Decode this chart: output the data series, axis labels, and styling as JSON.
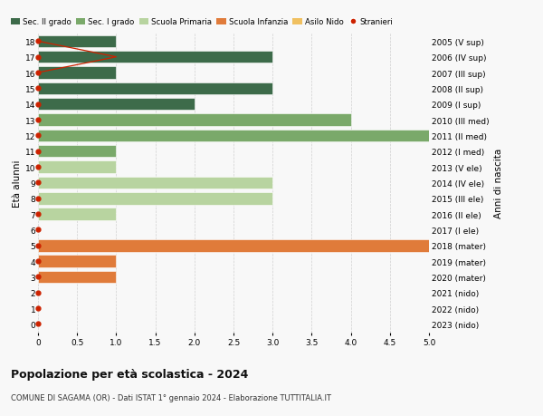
{
  "ages": [
    18,
    17,
    16,
    15,
    14,
    13,
    12,
    11,
    10,
    9,
    8,
    7,
    6,
    5,
    4,
    3,
    2,
    1,
    0
  ],
  "years": [
    "2005 (V sup)",
    "2006 (IV sup)",
    "2007 (III sup)",
    "2008 (II sup)",
    "2009 (I sup)",
    "2010 (III med)",
    "2011 (II med)",
    "2012 (I med)",
    "2013 (V ele)",
    "2014 (IV ele)",
    "2015 (III ele)",
    "2016 (II ele)",
    "2017 (I ele)",
    "2018 (mater)",
    "2019 (mater)",
    "2020 (mater)",
    "2021 (nido)",
    "2022 (nido)",
    "2023 (nido)"
  ],
  "bar_values": [
    1,
    3,
    1,
    3,
    2,
    4,
    5,
    1,
    1,
    3,
    3,
    1,
    0,
    5,
    1,
    1,
    0,
    0,
    0
  ],
  "bar_colors": [
    "#3d6b4a",
    "#3d6b4a",
    "#3d6b4a",
    "#3d6b4a",
    "#3d6b4a",
    "#7aa96a",
    "#7aa96a",
    "#7aa96a",
    "#b8d4a0",
    "#b8d4a0",
    "#b8d4a0",
    "#b8d4a0",
    "#b8d4a0",
    "#e07b3a",
    "#e07b3a",
    "#e07b3a",
    "#f0c060",
    "#f0c060",
    "#f0c060"
  ],
  "stranieri_line_x": [
    0,
    1,
    0
  ],
  "stranieri_line_y": [
    18,
    17,
    16
  ],
  "all_dot_ages": [
    18,
    17,
    16,
    15,
    14,
    13,
    12,
    11,
    10,
    9,
    8,
    7,
    6,
    5,
    4,
    3,
    2,
    1,
    0
  ],
  "legend_labels": [
    "Sec. II grado",
    "Sec. I grado",
    "Scuola Primaria",
    "Scuola Infanzia",
    "Asilo Nido",
    "Stranieri"
  ],
  "legend_colors": [
    "#3d6b4a",
    "#7aa96a",
    "#b8d4a0",
    "#e07b3a",
    "#f0c060",
    "#cc2200"
  ],
  "title": "Popolazione per età scolastica - 2024",
  "subtitle": "COMUNE DI SAGAMA (OR) - Dati ISTAT 1° gennaio 2024 - Elaborazione TUTTITALIA.IT",
  "ylabel_left": "Età alunni",
  "ylabel_right": "Anni di nascita",
  "xlim": [
    0,
    5.0
  ],
  "ylim": [
    -0.55,
    18.55
  ],
  "bg_color": "#f8f8f8",
  "bar_height": 0.78,
  "grid_color": "#d0d0d0",
  "dot_color": "#cc2200",
  "dot_size": 3.5,
  "line_color": "#cc2200"
}
